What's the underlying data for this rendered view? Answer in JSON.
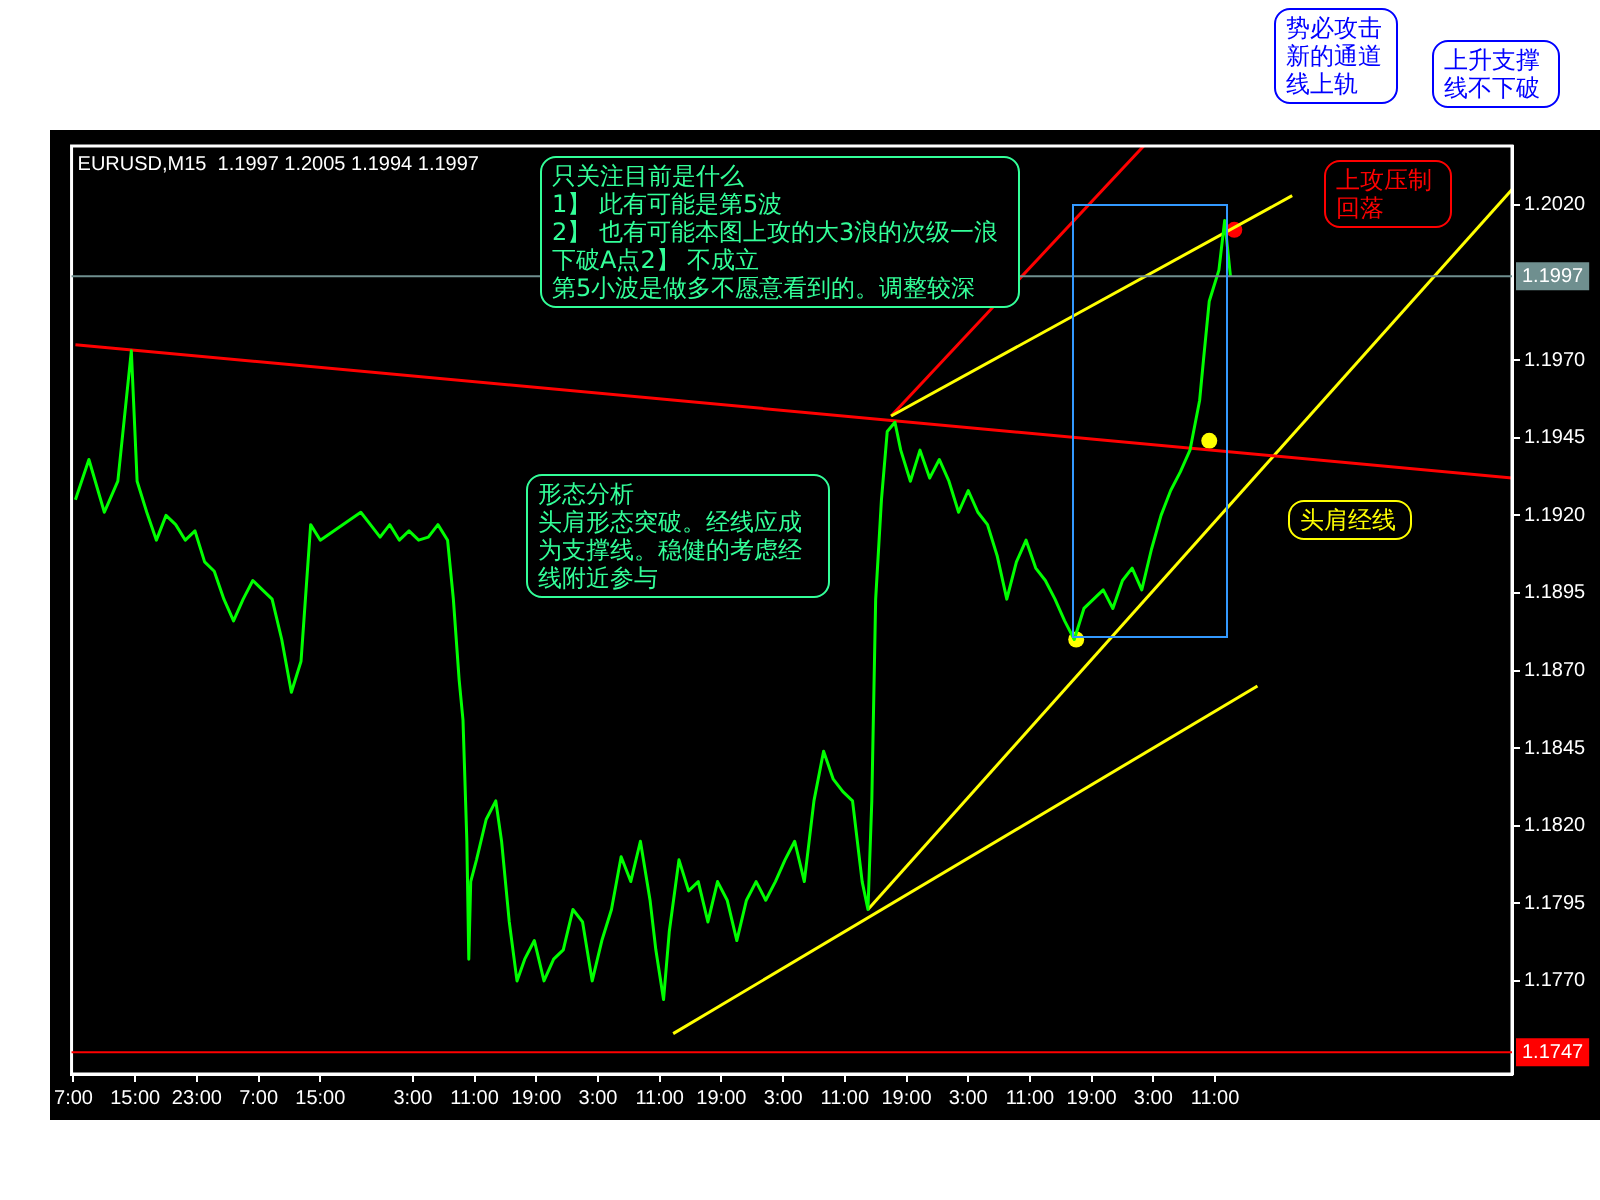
{
  "chart_data": {
    "type": "line",
    "title": "EURUSD,M15  1.1997 1.2005 1.1994 1.1997",
    "xlim": [
      "2000-01-03T06:45",
      "2000-01-11T01:30"
    ],
    "xticks": [
      {
        "value": "2000-01-03T07:00",
        "label": "7:00"
      },
      {
        "value": "2000-01-03T15:00",
        "label": "15:00"
      },
      {
        "value": "2000-01-03T23:00",
        "label": "23:00"
      },
      {
        "value": "2000-01-04T07:00",
        "label": "7:00"
      },
      {
        "value": "2000-01-04T15:00",
        "label": "15:00"
      },
      {
        "value": "2000-01-05T03:00",
        "label": "3:00"
      },
      {
        "value": "2000-01-05T11:00",
        "label": "11:00"
      },
      {
        "value": "2000-01-05T19:00",
        "label": "19:00"
      },
      {
        "value": "2000-01-06T03:00",
        "label": "3:00"
      },
      {
        "value": "2000-01-06T11:00",
        "label": "11:00"
      },
      {
        "value": "2000-01-06T19:00",
        "label": "19:00"
      },
      {
        "value": "2000-01-07T03:00",
        "label": "3:00"
      },
      {
        "value": "2000-01-07T11:00",
        "label": "11:00"
      },
      {
        "value": "2000-01-07T19:00",
        "label": "19:00"
      },
      {
        "value": "2000-01-08T03:00",
        "label": "3:00"
      },
      {
        "value": "2000-01-08T11:00",
        "label": "11:00"
      },
      {
        "value": "2000-01-08T19:00",
        "label": "19:00"
      },
      {
        "value": "2000-01-09T03:00",
        "label": "3:00"
      },
      {
        "value": "2000-01-09T11:00",
        "label": "11:00"
      }
    ],
    "ylim": [
      1.174,
      1.2039
    ],
    "yticks": [
      {
        "value": 1.177,
        "label": "1.1770"
      },
      {
        "value": 1.1795,
        "label": "1.1795"
      },
      {
        "value": 1.182,
        "label": "1.1820"
      },
      {
        "value": 1.1845,
        "label": "1.1845"
      },
      {
        "value": 1.187,
        "label": "1.1870"
      },
      {
        "value": 1.1895,
        "label": "1.1895"
      },
      {
        "value": 1.192,
        "label": "1.1920"
      },
      {
        "value": 1.1945,
        "label": "1.1945"
      },
      {
        "value": 1.197,
        "label": "1.1970"
      },
      {
        "value": 1.202,
        "label": "1.2020"
      }
    ],
    "grid": false,
    "legend": false,
    "marker": "none",
    "line_style": "solid",
    "series": [
      {
        "color": "#00ff00",
        "x": [
          "2000-01-03T07:15",
          "2000-01-03T09:00",
          "2000-01-03T11:00",
          "2000-01-03T12:45",
          "2000-01-03T14:30",
          "2000-01-03T15:15",
          "2000-01-03T16:30",
          "2000-01-03T17:45",
          "2000-01-03T19:00",
          "2000-01-03T20:15",
          "2000-01-03T21:30",
          "2000-01-03T22:45",
          "2000-01-04T00:00",
          "2000-01-04T01:15",
          "2000-01-04T02:30",
          "2000-01-04T03:45",
          "2000-01-04T05:00",
          "2000-01-04T06:15",
          "2000-01-04T07:30",
          "2000-01-04T08:45",
          "2000-01-04T10:00",
          "2000-01-04T11:15",
          "2000-01-04T12:30",
          "2000-01-04T13:45",
          "2000-01-04T15:00",
          "2000-01-04T20:15",
          "2000-01-04T21:30",
          "2000-01-04T22:45",
          "2000-01-05T00:00",
          "2000-01-05T01:15",
          "2000-01-05T02:30",
          "2000-01-05T03:45",
          "2000-01-05T05:00",
          "2000-01-05T06:15",
          "2000-01-05T07:30",
          "2000-01-05T08:15",
          "2000-01-05T09:00",
          "2000-01-05T09:30",
          "2000-01-05T10:00",
          "2000-01-05T10:15",
          "2000-01-05T10:30",
          "2000-01-05T11:15",
          "2000-01-05T12:30",
          "2000-01-05T13:45",
          "2000-01-05T14:30",
          "2000-01-05T15:30",
          "2000-01-05T16:30",
          "2000-01-05T17:30",
          "2000-01-05T18:45",
          "2000-01-05T20:00",
          "2000-01-05T21:15",
          "2000-01-05T22:30",
          "2000-01-05T23:45",
          "2000-01-06T01:00",
          "2000-01-06T02:15",
          "2000-01-06T03:30",
          "2000-01-06T04:45",
          "2000-01-06T06:00",
          "2000-01-06T07:15",
          "2000-01-06T08:30",
          "2000-01-06T09:45",
          "2000-01-06T10:30",
          "2000-01-06T11:30",
          "2000-01-06T12:15",
          "2000-01-06T13:30",
          "2000-01-06T14:45",
          "2000-01-06T16:00",
          "2000-01-06T17:15",
          "2000-01-06T18:30",
          "2000-01-06T19:45",
          "2000-01-06T21:00",
          "2000-01-06T22:15",
          "2000-01-06T23:30",
          "2000-01-07T00:45",
          "2000-01-07T02:00",
          "2000-01-07T03:15",
          "2000-01-07T04:30",
          "2000-01-07T05:45",
          "2000-01-07T07:00",
          "2000-01-07T08:15",
          "2000-01-07T09:30",
          "2000-01-07T10:45",
          "2000-01-07T12:00",
          "2000-01-07T13:15",
          "2000-01-07T14:00",
          "2000-01-07T14:30",
          "2000-01-07T15:00",
          "2000-01-07T15:45",
          "2000-01-07T16:30",
          "2000-01-07T17:30",
          "2000-01-07T18:15",
          "2000-01-07T19:30",
          "2000-01-07T20:45",
          "2000-01-07T22:00",
          "2000-01-07T23:15",
          "2000-01-08T00:30",
          "2000-01-08T01:45",
          "2000-01-08T03:00",
          "2000-01-08T04:15",
          "2000-01-08T05:30",
          "2000-01-08T06:45",
          "2000-01-08T08:00",
          "2000-01-08T09:15",
          "2000-01-08T10:30",
          "2000-01-08T11:45",
          "2000-01-08T13:00",
          "2000-01-08T14:15",
          "2000-01-08T15:30",
          "2000-01-08T16:45",
          "2000-01-08T18:00",
          "2000-01-08T19:15",
          "2000-01-08T20:30",
          "2000-01-08T21:45",
          "2000-01-08T23:00",
          "2000-01-09T00:15",
          "2000-01-09T01:30",
          "2000-01-09T02:45",
          "2000-01-09T04:00",
          "2000-01-09T05:15",
          "2000-01-09T06:30",
          "2000-01-09T07:45",
          "2000-01-09T09:00",
          "2000-01-09T09:30",
          "2000-01-09T10:15",
          "2000-01-09T11:30",
          "2000-01-09T12:15",
          "2000-01-09T13:00"
        ],
        "values": [
          1.1925,
          1.1938,
          1.1921,
          1.1931,
          1.1973,
          1.1931,
          1.1921,
          1.1912,
          1.192,
          1.1917,
          1.1912,
          1.1915,
          1.1905,
          1.1902,
          1.1893,
          1.1886,
          1.1893,
          1.1899,
          1.1896,
          1.1893,
          1.188,
          1.1863,
          1.1873,
          1.1917,
          1.1912,
          1.1921,
          1.1917,
          1.1913,
          1.1917,
          1.1912,
          1.1915,
          1.1912,
          1.1913,
          1.1917,
          1.1912,
          1.1893,
          1.1867,
          1.1854,
          1.1815,
          1.1777,
          1.1802,
          1.1809,
          1.1822,
          1.1828,
          1.1815,
          1.1789,
          1.177,
          1.1777,
          1.1783,
          1.177,
          1.1777,
          1.178,
          1.1793,
          1.1789,
          1.177,
          1.1783,
          1.1793,
          1.181,
          1.1802,
          1.1815,
          1.1796,
          1.178,
          1.1764,
          1.1786,
          1.1809,
          1.1799,
          1.1802,
          1.1789,
          1.1802,
          1.1796,
          1.1783,
          1.1796,
          1.1802,
          1.1796,
          1.1802,
          1.1809,
          1.1815,
          1.1802,
          1.1828,
          1.1844,
          1.1835,
          1.1831,
          1.1828,
          1.1802,
          1.1793,
          1.1828,
          1.1893,
          1.1925,
          1.1947,
          1.195,
          1.1941,
          1.1931,
          1.1941,
          1.1932,
          1.1938,
          1.1931,
          1.1921,
          1.1928,
          1.1921,
          1.1917,
          1.1907,
          1.1893,
          1.1905,
          1.1912,
          1.1903,
          1.1899,
          1.1893,
          1.1886,
          1.188,
          1.189,
          1.1893,
          1.1896,
          1.189,
          1.1899,
          1.1903,
          1.1896,
          1.1909,
          1.192,
          1.1928,
          1.1934,
          1.1941,
          1.1957,
          1.197,
          1.1989,
          1.1999,
          1.2015,
          1.1997
        ]
      },
      {
        "color": "#ff0000",
        "x": [
          "2000-01-03T07:15",
          "2000-01-11T01:30"
        ],
        "values": [
          1.1975,
          1.1932
        ]
      },
      {
        "color": "#ffff00",
        "x": [
          "2000-01-07T17:00",
          "2000-01-09T21:00"
        ],
        "values": [
          1.1952,
          1.2023
        ]
      },
      {
        "color": "#ffff00",
        "x": [
          "2000-01-07T14:00",
          "2000-01-11T01:30"
        ],
        "values": [
          1.1793,
          1.2025
        ]
      },
      {
        "color": "#ffff00",
        "x": [
          "2000-01-06T12:45",
          "2000-01-09T16:30"
        ],
        "values": [
          1.1753,
          1.1865
        ]
      },
      {
        "color": "#ff0000",
        "x": [
          "2000-01-07T17:00",
          "2000-01-09T01:45"
        ],
        "values": [
          1.1952,
          1.2039
        ]
      },
      {
        "type": "scatter",
        "marker": "circle",
        "colors": [
          "#ffff00",
          "#ffff00",
          "#ff0000"
        ],
        "x": [
          "2000-01-08T17:00",
          "2000-01-09T10:15",
          "2000-01-09T13:30"
        ],
        "values": [
          1.188,
          1.1944,
          1.2012
        ]
      }
    ],
    "ref_lines": [
      {
        "axis": "y",
        "value": 1.1997,
        "label": "1.1997",
        "color": "#6f8f8f"
      },
      {
        "axis": "y",
        "value": 1.1747,
        "label": "1.1747",
        "color": "#ff0000"
      }
    ],
    "annotations": [
      "只关注目前是什么",
      "1】 此有可能是第5波",
      "2】 也有可能本图上攻的大3浪的次级一浪",
      "下破A点2】 不成立",
      "第5小波是做多不愿意看到的。调整较深",
      "形态分析",
      "头肩形态突破。经线应成为支撑线。稳健的考虑经线附近参与",
      "上攻压制回落",
      "头肩经线",
      "势必攻击新的通道线上轨",
      "上升支撑线不下破"
    ]
  }
}
